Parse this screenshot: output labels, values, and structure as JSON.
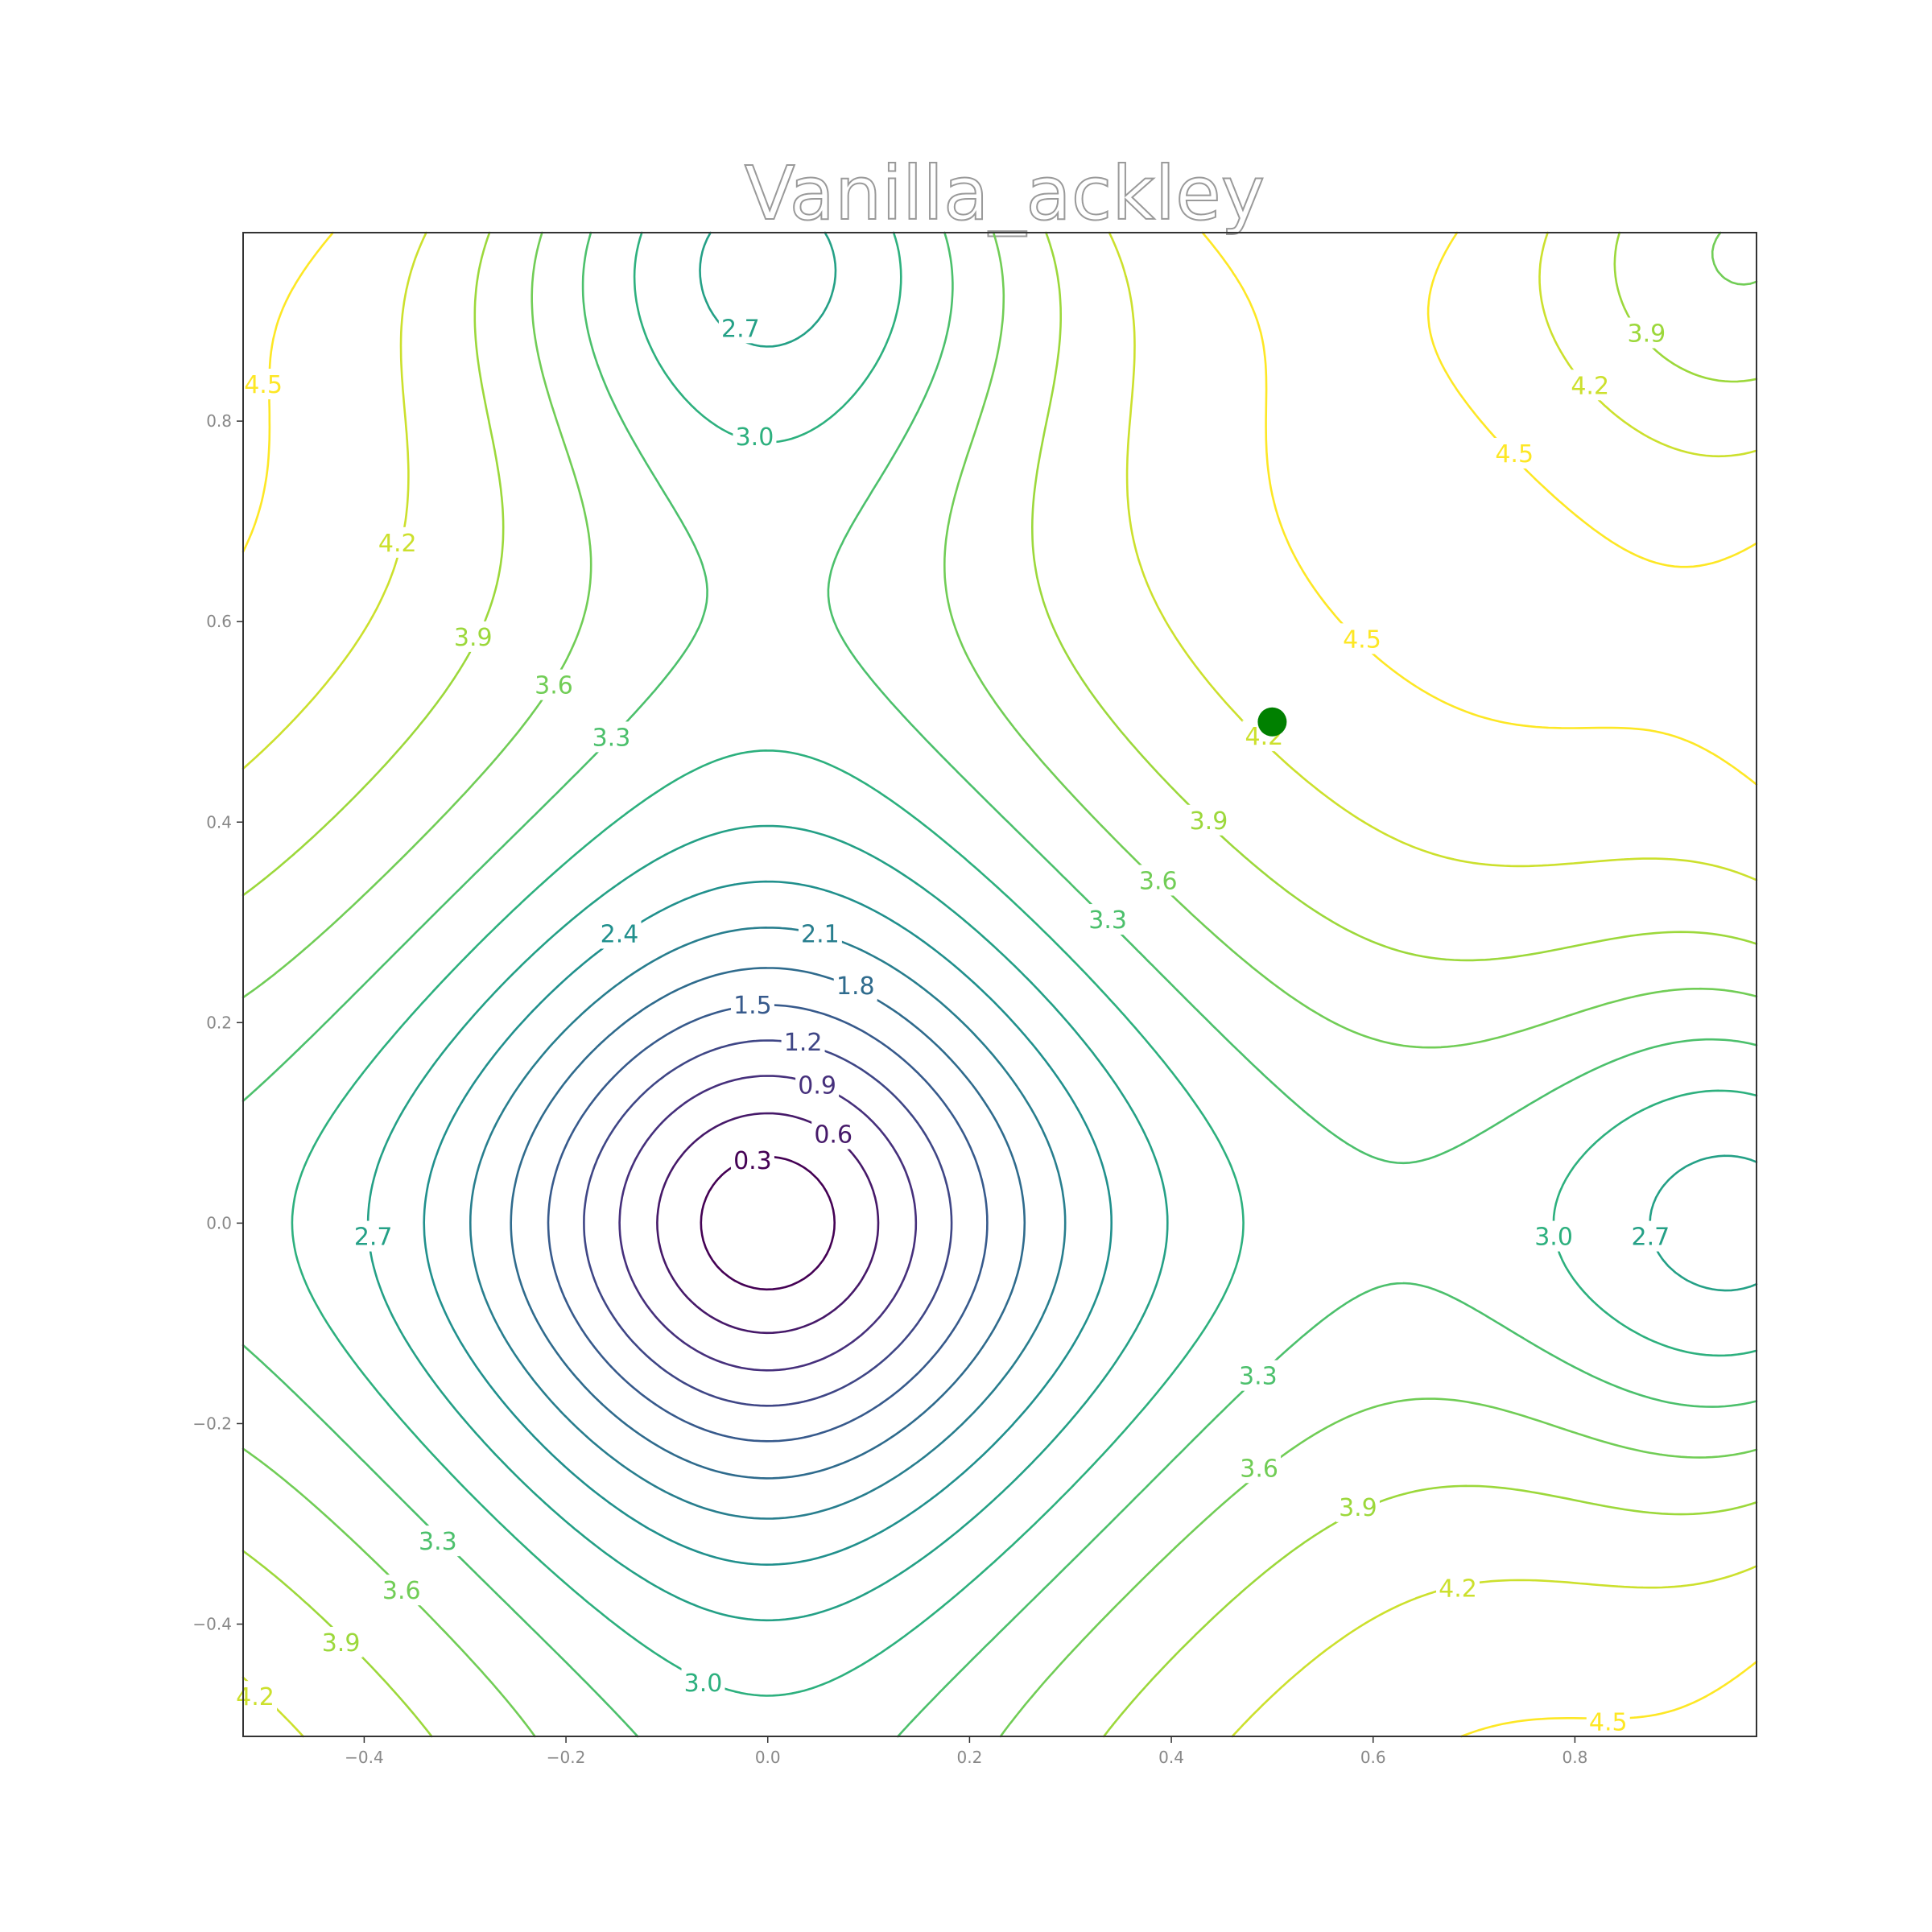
{
  "chart_data": {
    "type": "contour",
    "title": "Vanilla_ackley",
    "xlabel": "",
    "ylabel": "",
    "xlim": [
      -0.52,
      0.98
    ],
    "ylim": [
      -0.512,
      0.988
    ],
    "x_ticks": [
      "−0.4",
      "−0.2",
      "0.0",
      "0.2",
      "0.4",
      "0.6",
      "0.8"
    ],
    "y_ticks": [
      "−0.4",
      "−0.2",
      "0.0",
      "0.2",
      "0.4",
      "0.6",
      "0.8"
    ],
    "grid": false,
    "colormap": "viridis",
    "contour_levels": [
      0.3,
      0.6,
      0.9,
      1.2,
      1.5,
      1.8,
      2.1,
      2.4,
      2.7,
      3.0,
      3.3,
      3.6,
      3.9,
      4.2,
      4.5
    ],
    "contour_labels": [
      {
        "text": "0.3",
        "x": -0.015,
        "y": 0.063
      },
      {
        "text": "0.6",
        "x": 0.065,
        "y": 0.089
      },
      {
        "text": "0.9",
        "x": 0.049,
        "y": 0.138
      },
      {
        "text": "1.2",
        "x": 0.035,
        "y": 0.181
      },
      {
        "text": "1.5",
        "x": -0.015,
        "y": 0.218
      },
      {
        "text": "1.8",
        "x": 0.087,
        "y": 0.237
      },
      {
        "text": "2.1",
        "x": 0.052,
        "y": 0.289
      },
      {
        "text": "2.4",
        "x": -0.147,
        "y": 0.289
      },
      {
        "text": "2.7",
        "x": -0.391,
        "y": -0.013
      },
      {
        "text": "2.7",
        "x": -0.027,
        "y": 0.893
      },
      {
        "text": "2.7",
        "x": 0.875,
        "y": -0.013
      },
      {
        "text": "3.0",
        "x": -0.013,
        "y": 0.785
      },
      {
        "text": "3.0",
        "x": -0.064,
        "y": -0.458
      },
      {
        "text": "3.0",
        "x": 0.779,
        "y": -0.013
      },
      {
        "text": "3.3",
        "x": -0.155,
        "y": 0.485
      },
      {
        "text": "3.3",
        "x": 0.337,
        "y": 0.303
      },
      {
        "text": "3.3",
        "x": 0.486,
        "y": -0.152
      },
      {
        "text": "3.3",
        "x": -0.327,
        "y": -0.317
      },
      {
        "text": "3.6",
        "x": -0.212,
        "y": 0.537
      },
      {
        "text": "3.6",
        "x": 0.387,
        "y": 0.342
      },
      {
        "text": "3.6",
        "x": 0.487,
        "y": -0.244
      },
      {
        "text": "3.6",
        "x": -0.363,
        "y": -0.366
      },
      {
        "text": "3.9",
        "x": -0.292,
        "y": 0.585
      },
      {
        "text": "3.9",
        "x": 0.437,
        "y": 0.402
      },
      {
        "text": "3.9",
        "x": 0.585,
        "y": -0.283
      },
      {
        "text": "3.9",
        "x": -0.423,
        "y": -0.418
      },
      {
        "text": "3.9",
        "x": 0.871,
        "y": 0.888
      },
      {
        "text": "4.2",
        "x": -0.367,
        "y": 0.679
      },
      {
        "text": "4.2",
        "x": 0.492,
        "y": 0.486
      },
      {
        "text": "4.2",
        "x": 0.684,
        "y": -0.364
      },
      {
        "text": "4.2",
        "x": -0.508,
        "y": -0.472
      },
      {
        "text": "4.2",
        "x": 0.815,
        "y": 0.836
      },
      {
        "text": "4.5",
        "x": -0.5,
        "y": 0.837
      },
      {
        "text": "4.5",
        "x": 0.589,
        "y": 0.583
      },
      {
        "text": "4.5",
        "x": 0.74,
        "y": 0.768
      },
      {
        "text": "4.5",
        "x": 0.833,
        "y": -0.497
      }
    ],
    "marker": {
      "x": 0.5,
      "y": 0.5,
      "color": "#008000"
    }
  }
}
